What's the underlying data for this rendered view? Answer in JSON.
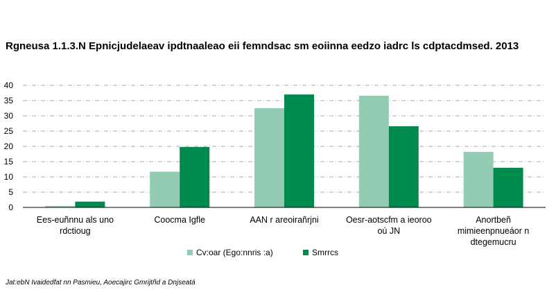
{
  "chart_data": {
    "type": "bar",
    "title": "Rgneusa 1.1.3.N Epnicjudelaeav ipdtnaaleao eii femndsac sm eoiinna eedzo iadrc ls cdptacdmsed. 2013",
    "categories": [
      [
        "Ees-euñnnu als uno",
        "rdctioug"
      ],
      [
        "Coocma Igfle"
      ],
      [
        "AAN r areoirañrjni"
      ],
      [
        "Oesr-aotscfm a ieoroo",
        "oú JN"
      ],
      [
        "Anortbeñ",
        "mimieenpnueáor n",
        "dtegemucru"
      ]
    ],
    "series": [
      {
        "name": "Cv:oar (Ego:nnris :a)",
        "color": "#93cbb3",
        "values": [
          0.5,
          11.7,
          32.5,
          36.6,
          18.2
        ]
      },
      {
        "name": "Smrrcs",
        "color": "#008a4e",
        "values": [
          1.9,
          19.8,
          37.0,
          26.6,
          13.0
        ]
      }
    ],
    "ylim": [
      0,
      40
    ],
    "yticks": [
      0,
      5,
      10,
      15,
      20,
      25,
      30,
      35,
      40
    ],
    "grid": true,
    "legend": "bottom"
  },
  "source": "Jat:ebN Ivaidedfat nn Pasmieu, Aoecajirc Gmrijtñd a Dnjseatá"
}
